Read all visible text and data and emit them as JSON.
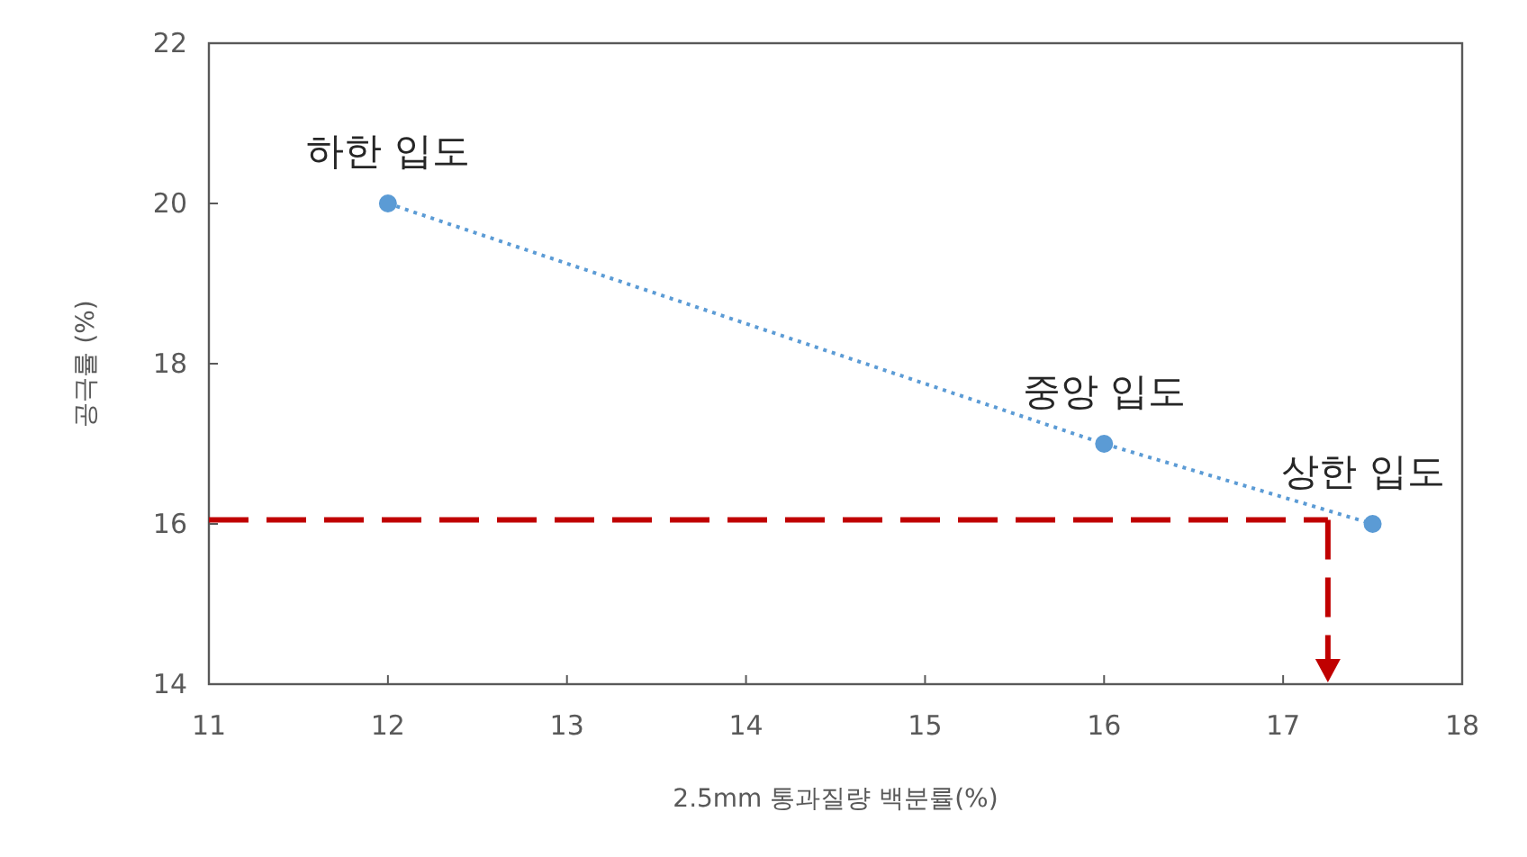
{
  "chart_data": {
    "type": "line",
    "xlabel": "2.5mm 통과질량 백분률(%)",
    "ylabel": "공극률 (%)",
    "xlim": [
      11,
      18
    ],
    "xticks": [
      11,
      12,
      13,
      14,
      15,
      16,
      17,
      18
    ],
    "ylim": [
      14,
      22
    ],
    "yticks": [
      14,
      16,
      18,
      20,
      22
    ],
    "grid": false,
    "legend": false,
    "series": [
      {
        "x": [
          12,
          16,
          17.5
        ],
        "values": [
          20,
          17,
          16
        ],
        "color": "#5b9bd5",
        "marker": "circle",
        "line_style": "dotted"
      }
    ],
    "ref_lines": [
      {
        "axis": "y",
        "value": 16.05,
        "color": "#c00000",
        "line_style": "dashed"
      },
      {
        "axis": "x",
        "value": 17.25,
        "color": "#c00000",
        "line_style": "dashed"
      }
    ],
    "annotations": [
      {
        "text": "하한 입도",
        "x": 12,
        "y": 20
      },
      {
        "text": "중앙 입도",
        "x": 16,
        "y": 17
      },
      {
        "text": "상한 입도",
        "x": 17.5,
        "y": 16
      }
    ]
  }
}
